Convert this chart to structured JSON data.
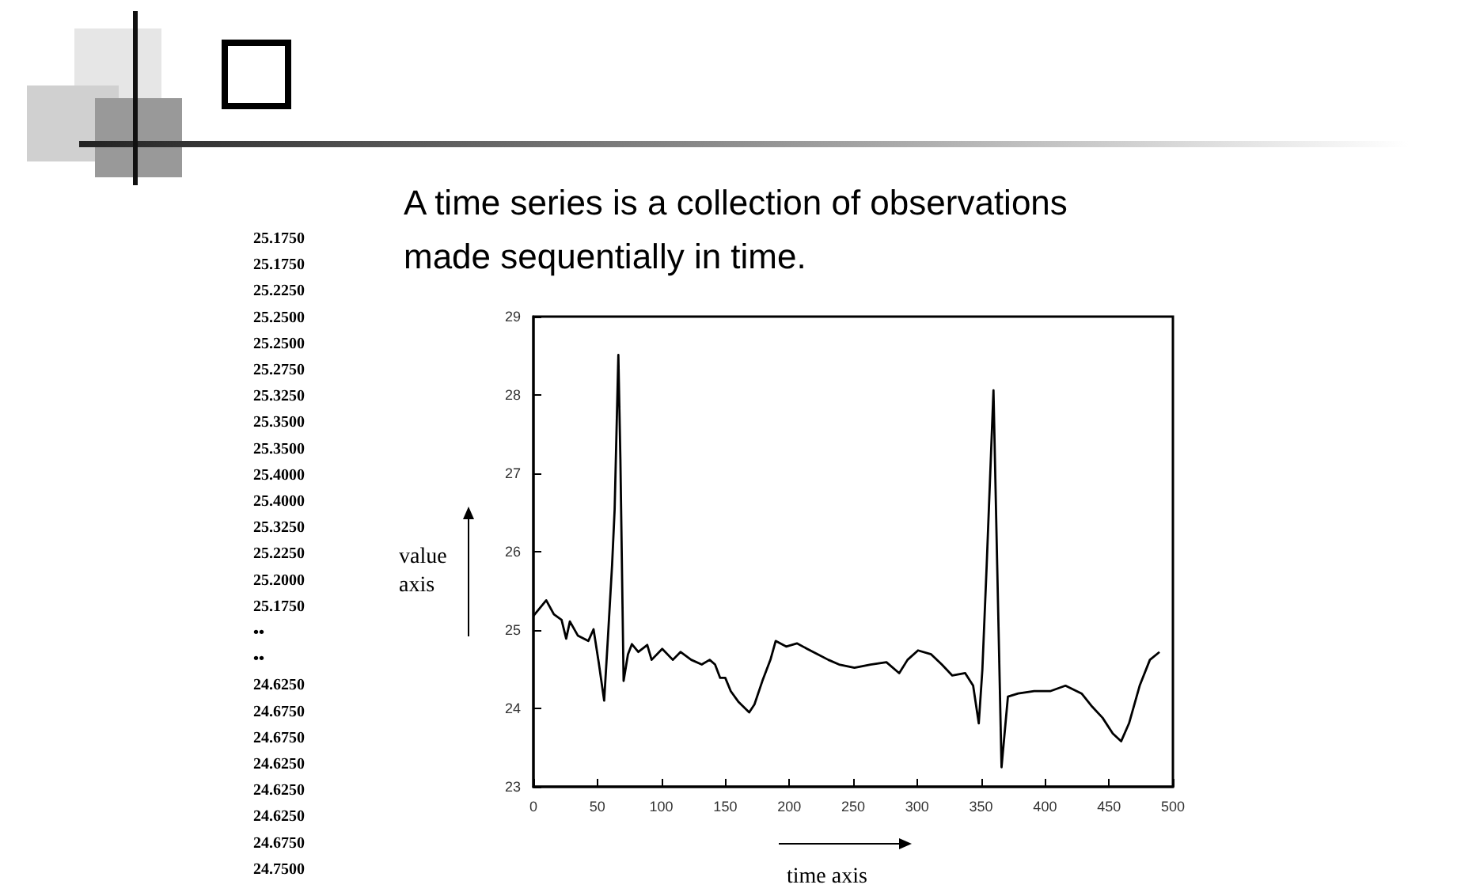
{
  "chart_data": {
    "type": "line",
    "title": "A time series is a collection of observations made sequentially in time.",
    "xlabel": "time axis",
    "ylabel": "value axis",
    "annotations": [
      "25.1750",
      "25.1750",
      "25.2250",
      "25.2500",
      "25.2500",
      "25.2750",
      "25.3250",
      "25.3500",
      "25.3500",
      "25.4000",
      "25.4000",
      "25.3250",
      "25.2250",
      "25.2000",
      "25.1750",
      "••",
      "••",
      "24.6250",
      "24.6750",
      "24.6750",
      "24.6250",
      "24.6250",
      "24.6250",
      "24.6750",
      "24.7500"
    ],
    "xlim": [
      0,
      500
    ],
    "xticks": [
      0,
      50,
      100,
      150,
      200,
      250,
      300,
      350,
      400,
      450,
      500
    ],
    "ylim": [
      23,
      29
    ],
    "yticks": [
      23,
      24,
      25,
      26,
      27,
      28,
      29
    ],
    "series": [
      {
        "color": "#000000",
        "x": [
          0,
          10,
          16,
          22,
          25.6,
          28.5,
          34.7,
          42.9,
          47,
          51,
          55.3,
          58.2,
          61.5,
          63.5,
          66.4,
          68,
          70.5,
          73.9,
          77,
          82,
          89,
          92.4,
          100.7,
          109,
          115,
          123.4,
          131.6,
          137.8,
          142,
          146,
          150,
          154.3,
          160.5,
          168.7,
          172.8,
          179,
          185.3,
          189.4,
          197.6,
          206,
          214,
          222.4,
          230.6,
          239,
          251,
          263.6,
          276,
          286,
          292.5,
          300.7,
          311,
          319.3,
          327.5,
          337.6,
          343.8,
          348.2,
          351,
          354.4,
          359.7,
          362.6,
          366,
          371,
          379,
          391.5,
          404,
          416,
          428.6,
          437,
          445,
          453,
          459.5,
          465.7,
          474,
          482,
          489.5
        ],
        "values": [
          25.18,
          25.38,
          25.2,
          25.13,
          24.89,
          25.11,
          24.93,
          24.86,
          25.01,
          24.59,
          24.1,
          24.89,
          25.83,
          26.54,
          28.51,
          27.18,
          24.35,
          24.69,
          24.82,
          24.72,
          24.81,
          24.62,
          24.76,
          24.62,
          24.72,
          24.62,
          24.56,
          24.62,
          24.56,
          24.39,
          24.39,
          24.22,
          24.08,
          23.95,
          24.05,
          24.35,
          24.62,
          24.86,
          24.79,
          24.83,
          24.76,
          24.69,
          24.62,
          24.56,
          24.52,
          24.56,
          24.59,
          24.45,
          24.62,
          24.74,
          24.69,
          24.56,
          24.42,
          24.45,
          24.29,
          23.81,
          24.49,
          25.83,
          28.06,
          25.83,
          23.25,
          24.15,
          24.19,
          24.22,
          24.22,
          24.29,
          24.19,
          24.02,
          23.88,
          23.68,
          23.58,
          23.81,
          24.29,
          24.62,
          24.72
        ]
      }
    ]
  }
}
